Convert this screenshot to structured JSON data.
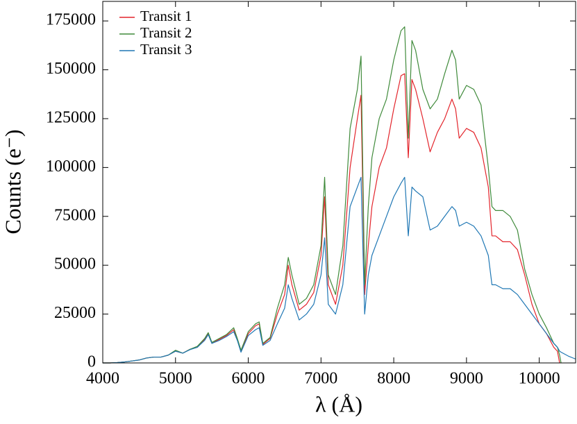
{
  "chart_data": {
    "type": "line",
    "xlabel": "λ (Å)",
    "ylabel": "Counts (e⁻)",
    "x": [
      4000,
      4100,
      4200,
      4300,
      4400,
      4500,
      4600,
      4700,
      4800,
      4900,
      5000,
      5100,
      5200,
      5300,
      5400,
      5450,
      5500,
      5600,
      5700,
      5800,
      5850,
      5900,
      6000,
      6100,
      6150,
      6200,
      6300,
      6400,
      6500,
      6550,
      6600,
      6700,
      6800,
      6900,
      7000,
      7050,
      7100,
      7200,
      7300,
      7400,
      7500,
      7550,
      7600,
      7650,
      7700,
      7800,
      7900,
      8000,
      8100,
      8150,
      8200,
      8250,
      8300,
      8400,
      8500,
      8600,
      8700,
      8800,
      8850,
      8900,
      9000,
      9100,
      9200,
      9300,
      9350,
      9400,
      9500,
      9600,
      9700,
      9800,
      9900,
      10000,
      10100,
      10200,
      10250,
      10280,
      10300,
      10400,
      10500
    ],
    "series": [
      {
        "name": "Transit 1",
        "color": "#e3242b",
        "values": [
          0,
          0,
          200,
          500,
          1000,
          1500,
          2500,
          3000,
          3000,
          4000,
          6000,
          5000,
          7000,
          8000,
          12000,
          15000,
          10000,
          12000,
          14000,
          17000,
          12000,
          6000,
          15000,
          19000,
          20000,
          9500,
          12500,
          25000,
          35000,
          50000,
          40000,
          27000,
          30000,
          36000,
          55000,
          85000,
          40000,
          30000,
          50000,
          100000,
          125000,
          137000,
          35000,
          60000,
          80000,
          100000,
          110000,
          130000,
          147000,
          148000,
          105000,
          145000,
          140000,
          125000,
          108000,
          118000,
          125000,
          135000,
          130000,
          115000,
          120000,
          118000,
          110000,
          90000,
          65000,
          65000,
          62000,
          62000,
          58000,
          45000,
          30000,
          20000,
          15000,
          8000,
          6000,
          0,
          null,
          null,
          null
        ]
      },
      {
        "name": "Transit 2",
        "color": "#3f8a3a",
        "values": [
          0,
          0,
          200,
          500,
          1000,
          1500,
          2500,
          3000,
          3000,
          4000,
          6500,
          5000,
          7000,
          8500,
          12500,
          15500,
          10500,
          12500,
          14500,
          18000,
          12500,
          6500,
          16000,
          20000,
          21000,
          10000,
          13000,
          28000,
          40000,
          54000,
          45000,
          30000,
          33000,
          40000,
          60000,
          95000,
          45000,
          35000,
          60000,
          120000,
          140000,
          157000,
          40000,
          80000,
          105000,
          125000,
          135000,
          155000,
          170000,
          172000,
          115000,
          165000,
          160000,
          140000,
          130000,
          135000,
          148000,
          160000,
          155000,
          135000,
          142000,
          140000,
          132000,
          100000,
          80000,
          78000,
          78000,
          75000,
          68000,
          48000,
          35000,
          25000,
          18000,
          10000,
          8000,
          4000,
          0,
          null,
          null
        ]
      },
      {
        "name": "Transit 3",
        "color": "#1f77b4",
        "values": [
          0,
          0,
          200,
          500,
          1000,
          1500,
          2500,
          3000,
          3000,
          4000,
          6000,
          5000,
          6800,
          8000,
          11500,
          14500,
          10000,
          11500,
          13500,
          16000,
          11500,
          5500,
          14000,
          17000,
          18000,
          9000,
          11500,
          20000,
          28000,
          40000,
          33000,
          22000,
          25000,
          30000,
          45000,
          64000,
          30000,
          25000,
          40000,
          80000,
          90000,
          95000,
          25000,
          45000,
          55000,
          65000,
          75000,
          85000,
          92000,
          95000,
          65000,
          90000,
          88000,
          85000,
          68000,
          70000,
          75000,
          80000,
          78000,
          70000,
          72000,
          70000,
          65000,
          55000,
          40000,
          40000,
          38000,
          38000,
          35000,
          30000,
          25000,
          20000,
          15000,
          10000,
          8000,
          6000,
          5500,
          3500,
          2000
        ]
      }
    ],
    "xlim": [
      4000,
      10500
    ],
    "ylim": [
      0,
      185000
    ],
    "xticks": [
      4000,
      5000,
      6000,
      7000,
      8000,
      9000,
      10000
    ],
    "yticks": [
      0,
      25000,
      50000,
      75000,
      100000,
      125000,
      150000,
      175000
    ],
    "legend": "upper left"
  }
}
